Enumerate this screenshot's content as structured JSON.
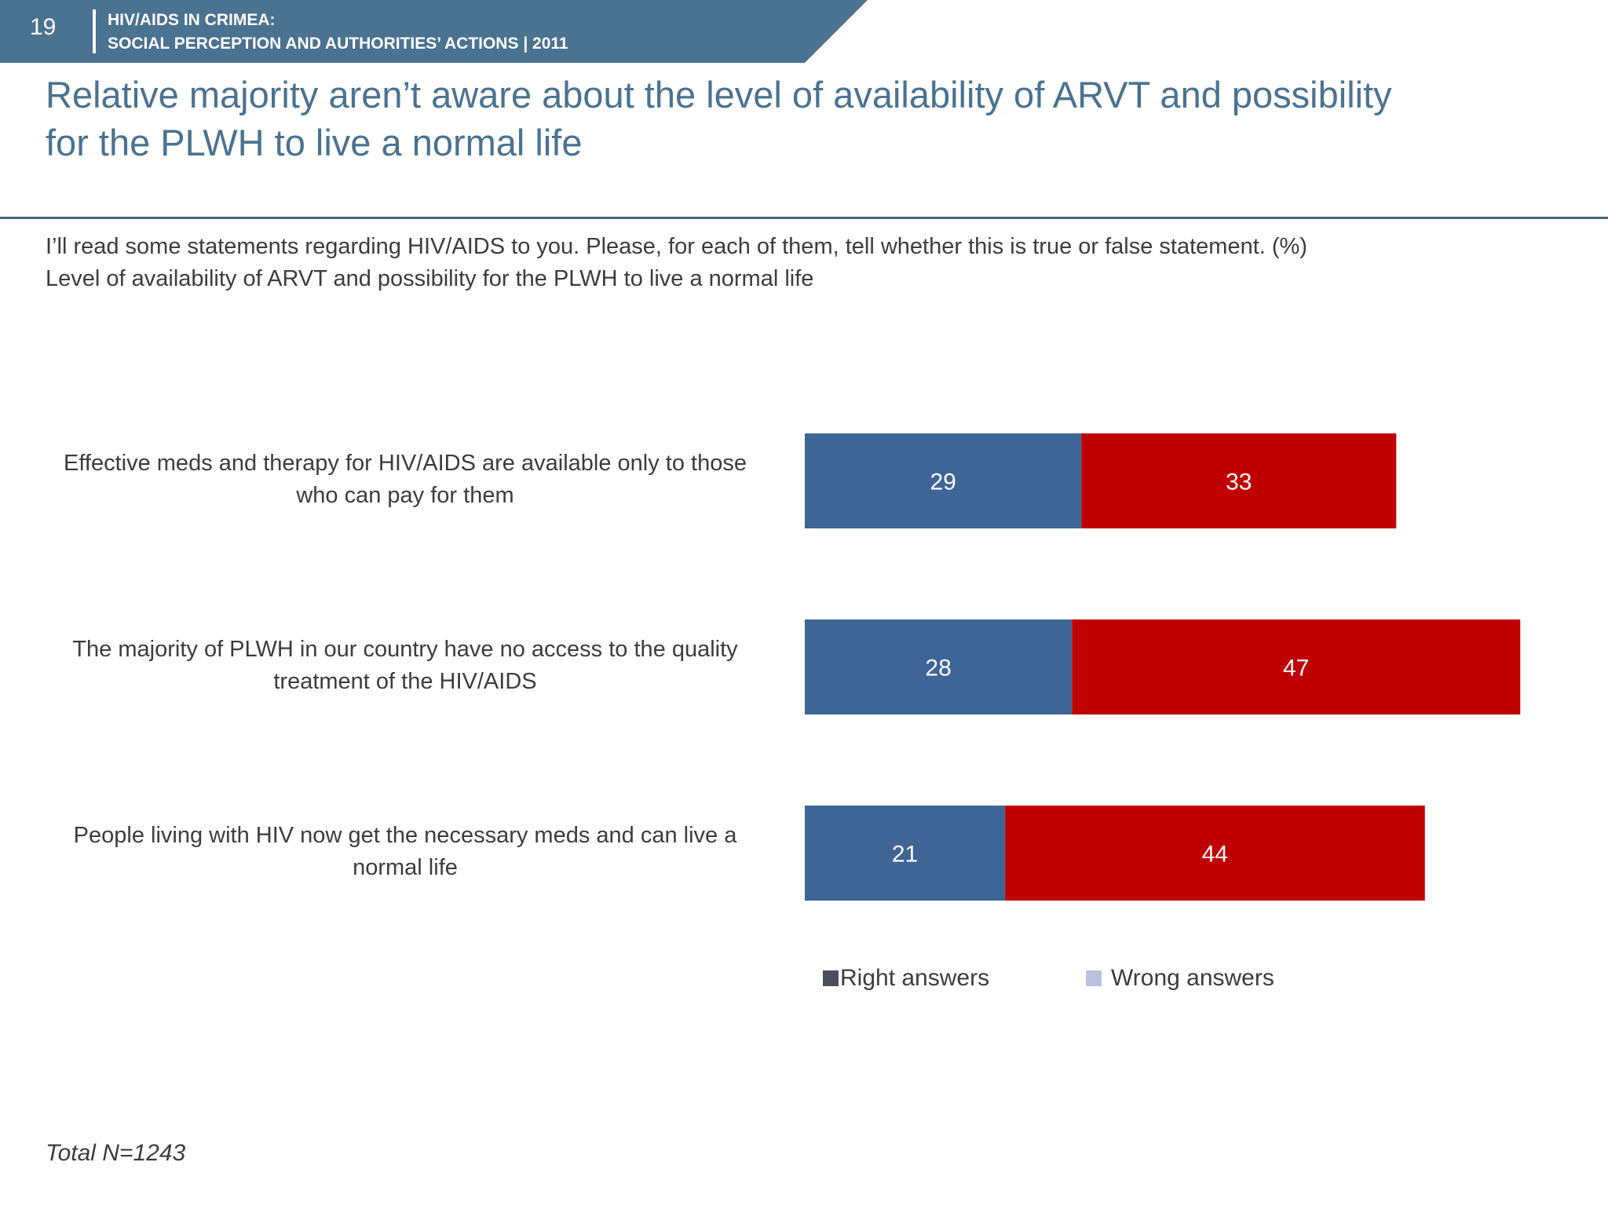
{
  "header": {
    "slide_number": "19",
    "line1": "HIV/AIDS IN CRIMEA:",
    "line2": "SOCIAL PERCEPTION AND AUTHORITIES’ ACTIONS  |  2011"
  },
  "title": {
    "line1": "Relative majority aren’t aware about the level of availability of ARVT and possibility",
    "line2": "for the PLWH to live a normal life"
  },
  "question": {
    "line1": "I’ll read some statements regarding HIV/AIDS to you. Please, for each of them, tell whether this is true or false statement. (%)",
    "line2": "Level of availability of ARVT and possibility for the PLWH to live a normal life"
  },
  "chart_data": {
    "type": "bar",
    "orientation": "horizontal",
    "stacked": true,
    "categories": [
      {
        "line1": "Effective meds and therapy for HIV/AIDS are available only to those",
        "line2": "who can pay for them"
      },
      {
        "line1": "The majority of PLWH in our country have no access to the quality",
        "line2": "treatment of the HIV/AIDS"
      },
      {
        "line1": "People living with HIV now get the necessary meds and can live a",
        "line2": "normal life"
      }
    ],
    "series": [
      {
        "name": "Right answers",
        "color": "#3e6595",
        "values": [
          29,
          28,
          21
        ]
      },
      {
        "name": "Wrong answers",
        "color": "#c00000",
        "values": [
          33,
          47,
          44
        ]
      }
    ],
    "legend": {
      "position": "bottom",
      "items": [
        {
          "label": "Right answers",
          "swatch_color": "#4b4f5a"
        },
        {
          "label": "Wrong answers",
          "swatch_color": "#b8c2dc"
        }
      ]
    },
    "value_label_color": "#ffffff",
    "xlim": [
      0,
      75
    ]
  },
  "footnote": "Total N=1243"
}
